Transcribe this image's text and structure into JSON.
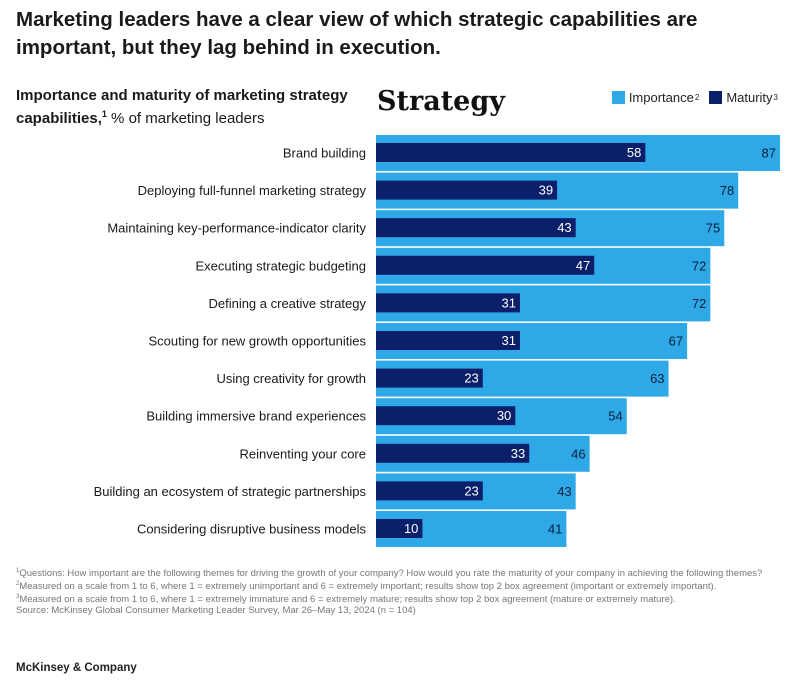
{
  "headline": "Marketing leaders have a clear view of which strategic capabilities are important, but they lag behind in execution.",
  "subtitle": {
    "bold": "Importance and maturity of marketing strategy capabilities,",
    "sup": "1",
    "rest": " % of marketing leaders"
  },
  "section_title": "Strategy",
  "legend": {
    "importance_label": "Importance",
    "importance_sup": "2",
    "maturity_label": "Maturity",
    "maturity_sup": "3"
  },
  "colors": {
    "importance": "#2ea8e6",
    "maturity": "#0b1f6b"
  },
  "chart_data": {
    "type": "bar",
    "orientation": "horizontal",
    "categories": [
      "Brand building",
      "Deploying full-funnel marketing strategy",
      "Maintaining key-performance-indicator clarity",
      "Executing strategic budgeting",
      "Defining a creative strategy",
      "Scouting for new growth opportunities",
      "Using creativity for growth",
      "Building immersive brand experiences",
      "Reinventing your core",
      "Building an ecosystem of strategic partnerships",
      "Considering disruptive business models"
    ],
    "series": [
      {
        "name": "Importance",
        "values": [
          87,
          78,
          75,
          72,
          72,
          67,
          63,
          54,
          46,
          43,
          41
        ]
      },
      {
        "name": "Maturity",
        "values": [
          58,
          39,
          43,
          47,
          31,
          31,
          23,
          30,
          33,
          23,
          10
        ]
      }
    ],
    "xlim": [
      0,
      87
    ]
  },
  "footnotes": [
    {
      "sup": "1",
      "text": "Questions: How important are the following themes for driving the growth of your company? How would you rate the maturity of your company in achieving the following themes?"
    },
    {
      "sup": "2",
      "text": "Measured on a scale from 1 to 6, where 1 = extremely unimportant and 6 = extremely important; results show top 2 box agreement (important or extremely important)."
    },
    {
      "sup": "3",
      "text": "Measured on a scale from 1 to 6, where 1 = extremely immature and 6 = extremely mature; results show top 2 box agreement (mature or extremely mature)."
    },
    {
      "sup": "",
      "text": "Source: McKinsey Global Consumer Marketing Leader Survey, Mar 26–May 13, 2024 (n = 104)"
    }
  ],
  "brand": "McKinsey & Company"
}
